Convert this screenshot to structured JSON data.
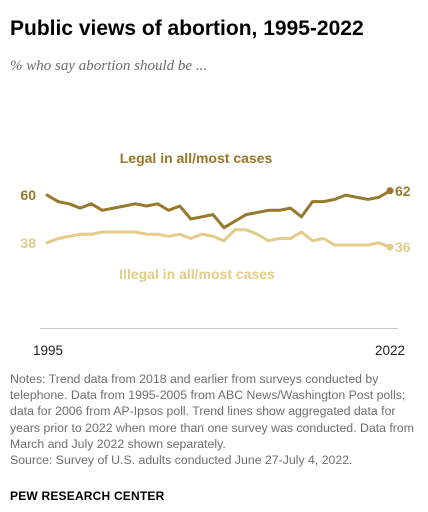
{
  "title": "Public views of abortion, 1995-2022",
  "subtitle": "% who say abortion should be ...",
  "colors": {
    "legal": "#98782a",
    "illegal": "#e3cb8a",
    "axis": "#c8c8c8"
  },
  "chart_data": {
    "type": "line",
    "x_start_label": "1995",
    "x_end_label": "2022",
    "ylim": [
      0,
      100
    ],
    "grid": false,
    "series": [
      {
        "key": "legal",
        "name": "Legal in all/most cases",
        "start_label": "60",
        "end_label": "62",
        "values": [
          60,
          57,
          56,
          54,
          56,
          53,
          54,
          55,
          56,
          55,
          56,
          53,
          55,
          49,
          50,
          51,
          45,
          48,
          51,
          52,
          53,
          53,
          54,
          50,
          57,
          57,
          58,
          60,
          59,
          58,
          59,
          62
        ]
      },
      {
        "key": "illegal",
        "name": "Illegal in all/most cases",
        "start_label": "38",
        "end_label": "36",
        "values": [
          38,
          40,
          41,
          42,
          42,
          43,
          43,
          43,
          43,
          42,
          42,
          41,
          42,
          40,
          42,
          41,
          39,
          44,
          44,
          42,
          39,
          40,
          40,
          43,
          39,
          40,
          37,
          37,
          37,
          37,
          38,
          36
        ]
      }
    ]
  },
  "notes": "Notes: Trend data from 2018 and earlier from surveys conducted by telephone. Data from 1995-2005 from ABC News/Washington Post polls; data for 2006 from AP-Ipsos poll. Trend lines show aggregated data for years prior to 2022 when more than one survey was conducted. Data from March and July 2022 shown separately.",
  "source": "Source: Survey of U.S. adults conducted June 27-July 4, 2022.",
  "credit": "PEW RESEARCH CENTER"
}
